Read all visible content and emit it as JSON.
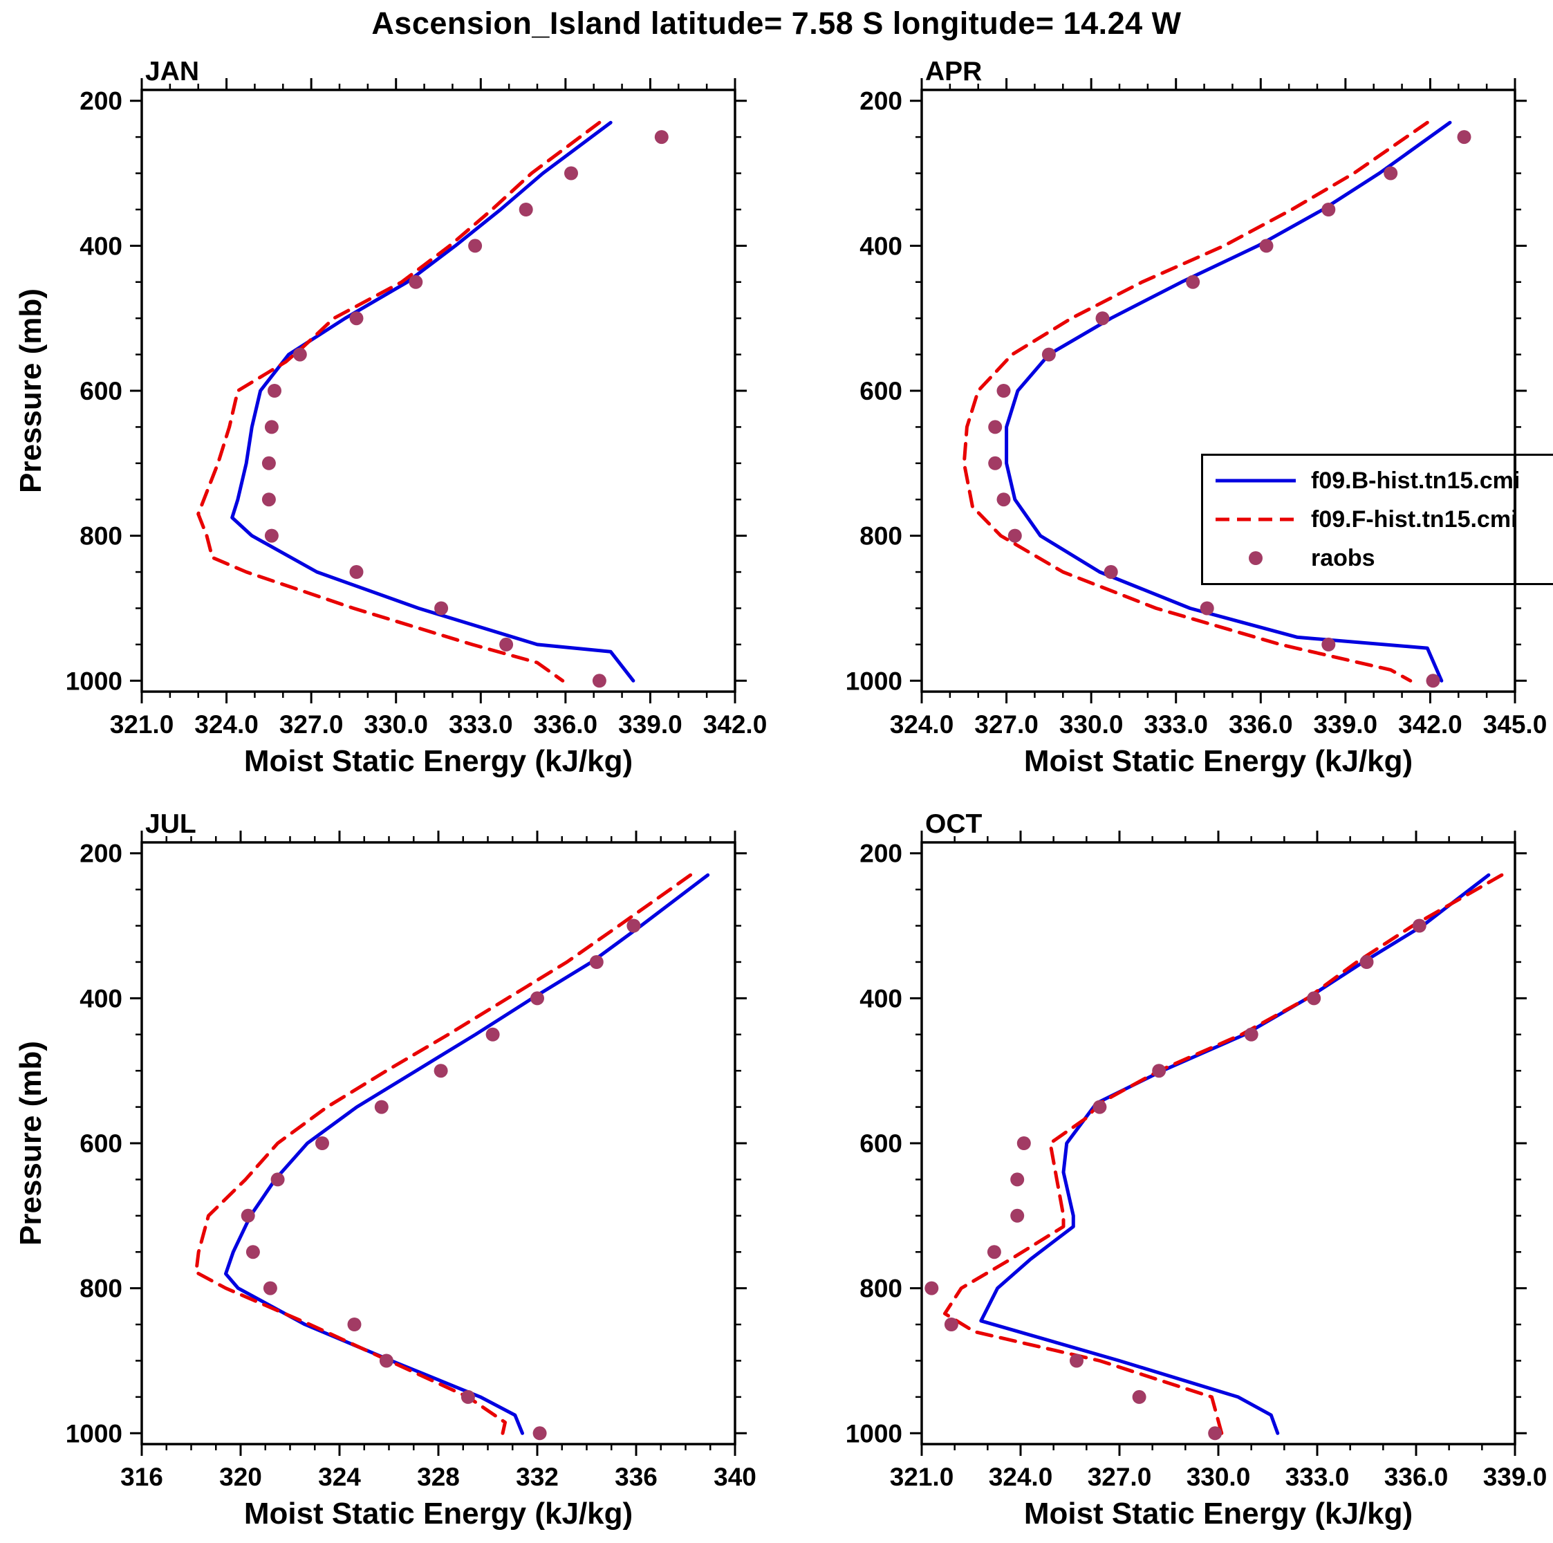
{
  "title": "Ascension_Island  latitude= 7.58 S longitude= 14.24 W",
  "ylabel": "Pressure (mb)",
  "colors": {
    "model_coupled": "#0000e0",
    "model_forced": "#e80000",
    "raobs": "#a23b64",
    "axis": "#000000"
  },
  "legend": {
    "items": [
      {
        "label": "f09.B-hist.tn15.cmi",
        "style": "line-solid",
        "color": "#0000e0"
      },
      {
        "label": "f09.F-hist.tn15.cmi",
        "style": "line-dashed",
        "color": "#e80000"
      },
      {
        "label": "raobs",
        "style": "dot",
        "color": "#a23b64"
      }
    ]
  },
  "chart_data": [
    {
      "type": "line",
      "title": "JAN",
      "xlabel": "Moist Static Energy (kJ/kg)",
      "ylabel": "Pressure (mb)",
      "xlim": [
        321.0,
        342.0
      ],
      "xticks": [
        321.0,
        324.0,
        327.0,
        330.0,
        333.0,
        336.0,
        339.0,
        342.0
      ],
      "xtick_labels": [
        "321.0",
        "324.0",
        "327.0",
        "330.0",
        "333.0",
        "336.0",
        "339.0",
        "342.0"
      ],
      "x_minor_step": 1.0,
      "ylim": [
        185,
        1015
      ],
      "y_increases_downward": true,
      "yticks": [
        200,
        400,
        600,
        800,
        1000
      ],
      "ytick_labels": [
        "200",
        "400",
        "600",
        "800",
        "1000"
      ],
      "y_minor_step": 50,
      "grid": false,
      "series": [
        {
          "name": "f09.B-hist.tn15.cmi",
          "style": "solid",
          "color": "#0000e0",
          "points": [
            [
              230,
              337.6
            ],
            [
              300,
              335.2
            ],
            [
              350,
              333.7
            ],
            [
              400,
              332.1
            ],
            [
              450,
              330.4
            ],
            [
              500,
              328.2
            ],
            [
              550,
              326.2
            ],
            [
              600,
              325.2
            ],
            [
              650,
              324.9
            ],
            [
              700,
              324.7
            ],
            [
              750,
              324.4
            ],
            [
              775,
              324.2
            ],
            [
              800,
              324.9
            ],
            [
              850,
              327.2
            ],
            [
              900,
              330.8
            ],
            [
              950,
              335.0
            ],
            [
              960,
              337.6
            ],
            [
              1000,
              338.4
            ]
          ]
        },
        {
          "name": "f09.F-hist.tn15.cmi",
          "style": "dashed",
          "color": "#e80000",
          "points": [
            [
              230,
              337.2
            ],
            [
              300,
              334.8
            ],
            [
              350,
              333.4
            ],
            [
              400,
              331.9
            ],
            [
              450,
              330.2
            ],
            [
              500,
              327.8
            ],
            [
              540,
              326.7
            ],
            [
              560,
              326.1
            ],
            [
              600,
              324.4
            ],
            [
              650,
              324.1
            ],
            [
              700,
              323.7
            ],
            [
              770,
              323.0
            ],
            [
              800,
              323.3
            ],
            [
              830,
              323.5
            ],
            [
              850,
              324.7
            ],
            [
              900,
              328.5
            ],
            [
              950,
              332.7
            ],
            [
              975,
              335.0
            ],
            [
              1000,
              335.9
            ]
          ]
        },
        {
          "name": "raobs",
          "style": "dots",
          "color": "#a23b64",
          "points": [
            [
              250,
              339.4
            ],
            [
              300,
              336.2
            ],
            [
              350,
              334.6
            ],
            [
              400,
              332.8
            ],
            [
              450,
              330.7
            ],
            [
              500,
              328.6
            ],
            [
              550,
              326.6
            ],
            [
              600,
              325.7
            ],
            [
              650,
              325.6
            ],
            [
              700,
              325.5
            ],
            [
              750,
              325.5
            ],
            [
              800,
              325.6
            ],
            [
              850,
              328.6
            ],
            [
              900,
              331.6
            ],
            [
              950,
              333.9
            ],
            [
              1000,
              337.2
            ]
          ]
        }
      ]
    },
    {
      "type": "line",
      "title": "APR",
      "xlabel": "Moist Static Energy (kJ/kg)",
      "ylabel": "Pressure (mb)",
      "xlim": [
        324.0,
        345.0
      ],
      "xticks": [
        324.0,
        327.0,
        330.0,
        333.0,
        336.0,
        339.0,
        342.0,
        345.0
      ],
      "xtick_labels": [
        "324.0",
        "327.0",
        "330.0",
        "333.0",
        "336.0",
        "339.0",
        "342.0",
        "345.0"
      ],
      "x_minor_step": 1.0,
      "ylim": [
        185,
        1015
      ],
      "y_increases_downward": true,
      "yticks": [
        200,
        400,
        600,
        800,
        1000
      ],
      "ytick_labels": [
        "200",
        "400",
        "600",
        "800",
        "1000"
      ],
      "y_minor_step": 50,
      "grid": false,
      "series": [
        {
          "name": "f09.B-hist.tn15.cmi",
          "style": "solid",
          "color": "#0000e0",
          "points": [
            [
              230,
              342.7
            ],
            [
              300,
              340.2
            ],
            [
              350,
              338.2
            ],
            [
              400,
              335.9
            ],
            [
              450,
              333.2
            ],
            [
              500,
              330.7
            ],
            [
              550,
              328.5
            ],
            [
              600,
              327.4
            ],
            [
              650,
              327.0
            ],
            [
              700,
              327.0
            ],
            [
              750,
              327.3
            ],
            [
              800,
              328.2
            ],
            [
              850,
              330.3
            ],
            [
              900,
              333.5
            ],
            [
              940,
              337.3
            ],
            [
              955,
              341.9
            ],
            [
              1000,
              342.4
            ]
          ]
        },
        {
          "name": "f09.F-hist.tn15.cmi",
          "style": "dashed",
          "color": "#e80000",
          "points": [
            [
              230,
              341.9
            ],
            [
              300,
              339.3
            ],
            [
              350,
              337.1
            ],
            [
              400,
              334.7
            ],
            [
              450,
              331.8
            ],
            [
              500,
              329.3
            ],
            [
              550,
              327.2
            ],
            [
              600,
              326.0
            ],
            [
              650,
              325.6
            ],
            [
              700,
              325.5
            ],
            [
              760,
              325.8
            ],
            [
              800,
              326.8
            ],
            [
              850,
              329.0
            ],
            [
              900,
              332.3
            ],
            [
              950,
              336.7
            ],
            [
              985,
              340.6
            ],
            [
              1000,
              341.3
            ]
          ]
        },
        {
          "name": "raobs",
          "style": "dots",
          "color": "#a23b64",
          "points": [
            [
              250,
              343.2
            ],
            [
              300,
              340.6
            ],
            [
              350,
              338.4
            ],
            [
              400,
              336.2
            ],
            [
              450,
              333.6
            ],
            [
              500,
              330.4
            ],
            [
              550,
              328.5
            ],
            [
              600,
              326.9
            ],
            [
              650,
              326.6
            ],
            [
              700,
              326.6
            ],
            [
              750,
              326.9
            ],
            [
              800,
              327.3
            ],
            [
              850,
              330.7
            ],
            [
              900,
              334.1
            ],
            [
              950,
              338.4
            ],
            [
              1000,
              342.1
            ]
          ]
        }
      ]
    },
    {
      "type": "line",
      "title": "JUL",
      "xlabel": "Moist Static Energy (kJ/kg)",
      "ylabel": "Pressure (mb)",
      "xlim": [
        316,
        340
      ],
      "xticks": [
        316,
        320,
        324,
        328,
        332,
        336,
        340
      ],
      "xtick_labels": [
        "316",
        "320",
        "324",
        "328",
        "332",
        "336",
        "340"
      ],
      "x_minor_step": 1.0,
      "ylim": [
        185,
        1015
      ],
      "y_increases_downward": true,
      "yticks": [
        200,
        400,
        600,
        800,
        1000
      ],
      "ytick_labels": [
        "200",
        "400",
        "600",
        "800",
        "1000"
      ],
      "y_minor_step": 50,
      "grid": false,
      "series": [
        {
          "name": "f09.B-hist.tn15.cmi",
          "style": "solid",
          "color": "#0000e0",
          "points": [
            [
              230,
              338.9
            ],
            [
              300,
              336.2
            ],
            [
              350,
              334.2
            ],
            [
              400,
              331.8
            ],
            [
              450,
              329.5
            ],
            [
              500,
              327.1
            ],
            [
              550,
              324.7
            ],
            [
              600,
              322.7
            ],
            [
              650,
              321.4
            ],
            [
              700,
              320.4
            ],
            [
              750,
              319.7
            ],
            [
              780,
              319.4
            ],
            [
              800,
              319.9
            ],
            [
              850,
              322.6
            ],
            [
              900,
              326.1
            ],
            [
              950,
              329.7
            ],
            [
              975,
              331.1
            ],
            [
              1000,
              331.4
            ]
          ]
        },
        {
          "name": "f09.F-hist.tn15.cmi",
          "style": "dashed",
          "color": "#e80000",
          "points": [
            [
              230,
              338.2
            ],
            [
              300,
              335.3
            ],
            [
              350,
              333.2
            ],
            [
              400,
              330.8
            ],
            [
              450,
              328.4
            ],
            [
              500,
              325.9
            ],
            [
              550,
              323.5
            ],
            [
              600,
              321.5
            ],
            [
              650,
              320.2
            ],
            [
              700,
              318.7
            ],
            [
              750,
              318.3
            ],
            [
              778,
              318.2
            ],
            [
              800,
              319.4
            ],
            [
              850,
              322.8
            ],
            [
              900,
              326.0
            ],
            [
              950,
              329.2
            ],
            [
              985,
              330.7
            ],
            [
              1000,
              330.6
            ]
          ]
        },
        {
          "name": "raobs",
          "style": "dots",
          "color": "#a23b64",
          "points": [
            [
              300,
              335.9
            ],
            [
              350,
              334.4
            ],
            [
              400,
              332.0
            ],
            [
              450,
              330.2
            ],
            [
              500,
              328.1
            ],
            [
              550,
              325.7
            ],
            [
              600,
              323.3
            ],
            [
              650,
              321.5
            ],
            [
              700,
              320.3
            ],
            [
              750,
              320.5
            ],
            [
              800,
              321.2
            ],
            [
              850,
              324.6
            ],
            [
              900,
              325.9
            ],
            [
              950,
              329.2
            ],
            [
              1000,
              332.1
            ]
          ]
        }
      ]
    },
    {
      "type": "line",
      "title": "OCT",
      "xlabel": "Moist Static Energy (kJ/kg)",
      "ylabel": "Pressure (mb)",
      "xlim": [
        321.0,
        339.0
      ],
      "xticks": [
        321.0,
        324.0,
        327.0,
        330.0,
        333.0,
        336.0,
        339.0
      ],
      "xtick_labels": [
        "321.0",
        "324.0",
        "327.0",
        "330.0",
        "333.0",
        "336.0",
        "339.0"
      ],
      "x_minor_step": 1.0,
      "ylim": [
        185,
        1015
      ],
      "y_increases_downward": true,
      "yticks": [
        200,
        400,
        600,
        800,
        1000
      ],
      "ytick_labels": [
        "200",
        "400",
        "600",
        "800",
        "1000"
      ],
      "y_minor_step": 50,
      "grid": false,
      "series": [
        {
          "name": "f09.B-hist.tn15.cmi",
          "style": "solid",
          "color": "#0000e0",
          "points": [
            [
              230,
              338.2
            ],
            [
              300,
              336.2
            ],
            [
              350,
              334.4
            ],
            [
              400,
              332.7
            ],
            [
              450,
              330.8
            ],
            [
              500,
              328.3
            ],
            [
              545,
              326.3
            ],
            [
              600,
              325.4
            ],
            [
              640,
              325.3
            ],
            [
              700,
              325.6
            ],
            [
              715,
              325.6
            ],
            [
              760,
              324.3
            ],
            [
              800,
              323.3
            ],
            [
              845,
              322.8
            ],
            [
              900,
              327.0
            ],
            [
              950,
              330.6
            ],
            [
              975,
              331.6
            ],
            [
              1000,
              331.8
            ]
          ]
        },
        {
          "name": "f09.F-hist.tn15.cmi",
          "style": "dashed",
          "color": "#e80000",
          "points": [
            [
              230,
              338.6
            ],
            [
              300,
              335.9
            ],
            [
              350,
              334.2
            ],
            [
              400,
              332.7
            ],
            [
              450,
              330.7
            ],
            [
              500,
              328.2
            ],
            [
              545,
              326.4
            ],
            [
              565,
              326.0
            ],
            [
              600,
              324.9
            ],
            [
              650,
              325.1
            ],
            [
              700,
              325.3
            ],
            [
              715,
              325.3
            ],
            [
              760,
              323.7
            ],
            [
              800,
              322.2
            ],
            [
              835,
              321.7
            ],
            [
              860,
              322.6
            ],
            [
              900,
              326.4
            ],
            [
              950,
              329.8
            ],
            [
              1000,
              330.1
            ]
          ]
        },
        {
          "name": "raobs",
          "style": "dots",
          "color": "#a23b64",
          "points": [
            [
              300,
              336.1
            ],
            [
              350,
              334.5
            ],
            [
              400,
              332.9
            ],
            [
              450,
              331.0
            ],
            [
              500,
              328.2
            ],
            [
              550,
              326.4
            ],
            [
              600,
              324.1
            ],
            [
              650,
              323.9
            ],
            [
              700,
              323.9
            ],
            [
              750,
              323.2
            ],
            [
              800,
              321.3
            ],
            [
              850,
              321.9
            ],
            [
              900,
              325.7
            ],
            [
              950,
              327.6
            ],
            [
              1000,
              329.9
            ]
          ]
        }
      ]
    }
  ]
}
